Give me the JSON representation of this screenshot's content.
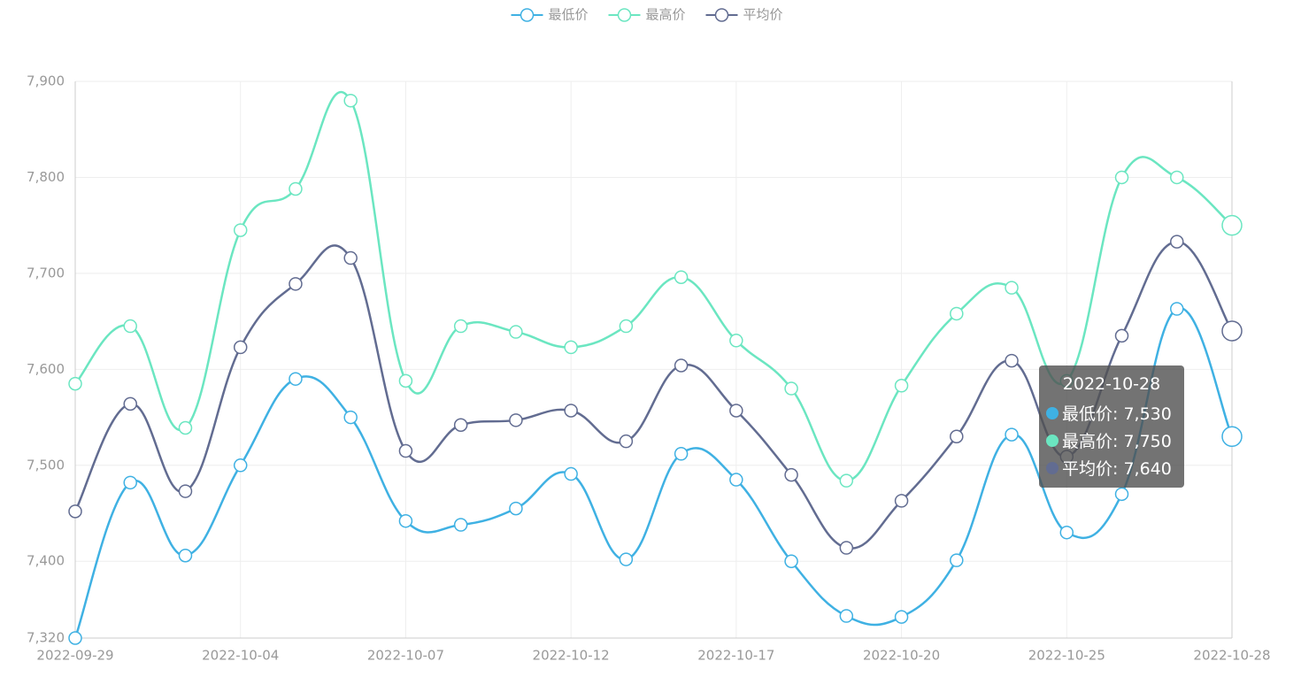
{
  "chart_data": {
    "type": "line",
    "categories": [
      "2022-09-29",
      null,
      null,
      "2022-10-04",
      null,
      null,
      "2022-10-07",
      null,
      null,
      "2022-10-12",
      null,
      null,
      "2022-10-17",
      null,
      null,
      "2022-10-20",
      null,
      null,
      "2022-10-25",
      null,
      null,
      "2022-10-28"
    ],
    "series": [
      {
        "name": "最低价",
        "color": "#3fb1e3",
        "values": [
          7320,
          7482,
          7406,
          7500,
          7590,
          7550,
          7442,
          7438,
          7455,
          7491,
          7402,
          7512,
          7485,
          7400,
          7343,
          7342,
          7401,
          7532,
          7430,
          7470,
          7663,
          7530
        ]
      },
      {
        "name": "最高价",
        "color": "#6be6c1",
        "values": [
          7585,
          7645,
          7539,
          7745,
          7788,
          7880,
          7588,
          7645,
          7639,
          7623,
          7645,
          7696,
          7630,
          7580,
          7484,
          7583,
          7658,
          7685,
          7588,
          7800,
          7800,
          7750
        ]
      },
      {
        "name": "平均价",
        "color": "#626c91",
        "values": [
          7452,
          7564,
          7473,
          7623,
          7689,
          7716,
          7515,
          7542,
          7547,
          7557,
          7525,
          7604,
          7557,
          7490,
          7414,
          7463,
          7530,
          7609,
          7509,
          7635,
          7733,
          7640
        ]
      }
    ],
    "ylim": [
      7320,
      7900
    ],
    "yticks": [
      {
        "value": 7320,
        "label": "7,320"
      },
      {
        "value": 7400,
        "label": "7,400"
      },
      {
        "value": 7500,
        "label": "7,500"
      },
      {
        "value": 7600,
        "label": "7,600"
      },
      {
        "value": 7700,
        "label": "7,700"
      },
      {
        "value": 7800,
        "label": "7,800"
      },
      {
        "value": 7900,
        "label": "7,900"
      }
    ],
    "grid": true,
    "legend": "top",
    "tooltip": {
      "title": "2022-10-28",
      "items": [
        "最低价: 7,530",
        "最高价: 7,750",
        "平均价: 7,640"
      ]
    }
  }
}
